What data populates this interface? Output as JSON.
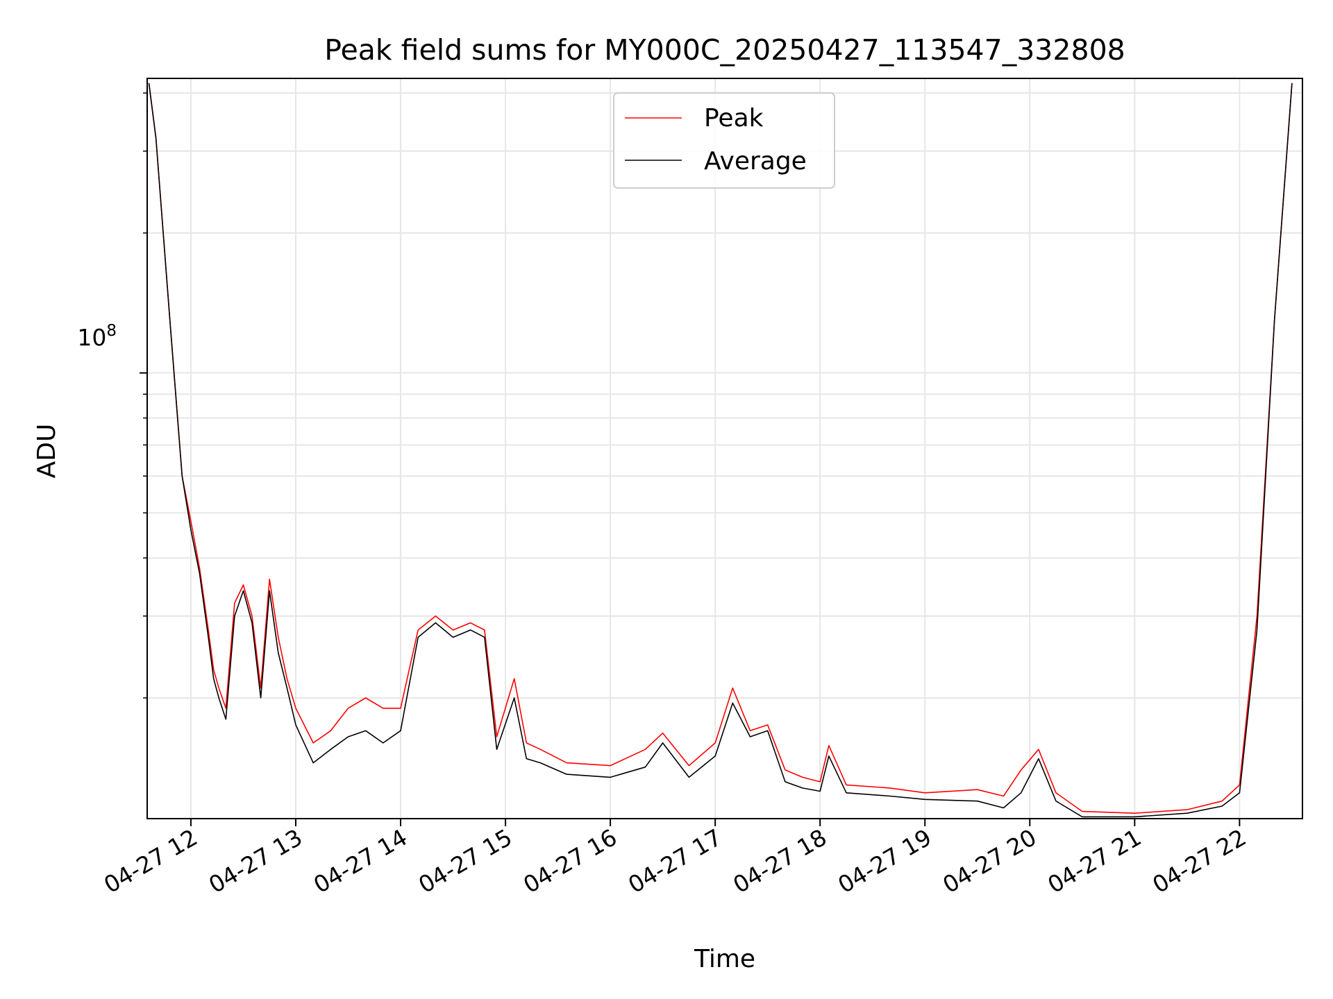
{
  "chart_data": {
    "type": "line",
    "title": "Peak field sums for MY000C_20250427_113547_332808",
    "xlabel": "Time",
    "ylabel": "ADU",
    "yscale": "log",
    "grid": true,
    "legend_position": "top-center",
    "x_range": [
      "2025-04-27 11:35",
      "2025-04-27 22:36"
    ],
    "ylim": [
      11000000,
      430000000
    ],
    "x_ticks": [
      "04-27 12",
      "04-27 13",
      "04-27 14",
      "04-27 15",
      "04-27 16",
      "04-27 17",
      "04-27 18",
      "04-27 19",
      "04-27 20",
      "04-27 21",
      "04-27 22"
    ],
    "y_tick_label": {
      "base": "10",
      "exponent": "8",
      "value": 100000000
    },
    "series": [
      {
        "name": "Peak",
        "color": "#ff0000",
        "x": [
          "2025-04-27 11:36",
          "2025-04-27 11:40",
          "2025-04-27 11:48",
          "2025-04-27 11:55",
          "2025-04-27 12:00",
          "2025-04-27 12:05",
          "2025-04-27 12:10",
          "2025-04-27 12:13",
          "2025-04-27 12:16",
          "2025-04-27 12:20",
          "2025-04-27 12:25",
          "2025-04-27 12:30",
          "2025-04-27 12:35",
          "2025-04-27 12:40",
          "2025-04-27 12:45",
          "2025-04-27 12:50",
          "2025-04-27 12:55",
          "2025-04-27 13:00",
          "2025-04-27 13:10",
          "2025-04-27 13:20",
          "2025-04-27 13:30",
          "2025-04-27 13:40",
          "2025-04-27 13:50",
          "2025-04-27 14:00",
          "2025-04-27 14:10",
          "2025-04-27 14:20",
          "2025-04-27 14:30",
          "2025-04-27 14:40",
          "2025-04-27 14:48",
          "2025-04-27 14:55",
          "2025-04-27 15:05",
          "2025-04-27 15:12",
          "2025-04-27 15:20",
          "2025-04-27 15:35",
          "2025-04-27 16:00",
          "2025-04-27 16:20",
          "2025-04-27 16:30",
          "2025-04-27 16:45",
          "2025-04-27 17:00",
          "2025-04-27 17:10",
          "2025-04-27 17:20",
          "2025-04-27 17:30",
          "2025-04-27 17:40",
          "2025-04-27 17:50",
          "2025-04-27 18:00",
          "2025-04-27 18:05",
          "2025-04-27 18:15",
          "2025-04-27 18:40",
          "2025-04-27 19:00",
          "2025-04-27 19:30",
          "2025-04-27 19:45",
          "2025-04-27 19:55",
          "2025-04-27 20:05",
          "2025-04-27 20:15",
          "2025-04-27 20:30",
          "2025-04-27 21:00",
          "2025-04-27 21:30",
          "2025-04-27 21:50",
          "2025-04-27 22:00",
          "2025-04-27 22:10",
          "2025-04-27 22:20",
          "2025-04-27 22:30"
        ],
        "values": [
          420000000,
          320000000,
          130000000,
          60000000,
          48000000,
          38000000,
          28000000,
          23000000,
          21000000,
          19000000,
          32000000,
          35000000,
          30000000,
          21000000,
          36000000,
          27000000,
          22000000,
          19000000,
          16000000,
          17000000,
          19000000,
          20000000,
          19000000,
          19000000,
          28000000,
          30000000,
          28000000,
          29000000,
          28000000,
          16500000,
          22000000,
          16000000,
          15500000,
          14500000,
          14300000,
          15500000,
          16800000,
          14300000,
          16000000,
          21000000,
          17000000,
          17500000,
          14000000,
          13500000,
          13200000,
          15800000,
          13000000,
          12800000,
          12500000,
          12700000,
          12300000,
          14000000,
          15500000,
          12500000,
          11400000,
          11300000,
          11500000,
          12000000,
          13000000,
          30000000,
          130000000,
          420000000
        ]
      },
      {
        "name": "Average",
        "color": "#000000",
        "x": [
          "2025-04-27 11:36",
          "2025-04-27 11:40",
          "2025-04-27 11:48",
          "2025-04-27 11:55",
          "2025-04-27 12:00",
          "2025-04-27 12:05",
          "2025-04-27 12:10",
          "2025-04-27 12:13",
          "2025-04-27 12:16",
          "2025-04-27 12:20",
          "2025-04-27 12:25",
          "2025-04-27 12:30",
          "2025-04-27 12:35",
          "2025-04-27 12:40",
          "2025-04-27 12:45",
          "2025-04-27 12:50",
          "2025-04-27 12:55",
          "2025-04-27 13:00",
          "2025-04-27 13:10",
          "2025-04-27 13:20",
          "2025-04-27 13:30",
          "2025-04-27 13:40",
          "2025-04-27 13:50",
          "2025-04-27 14:00",
          "2025-04-27 14:10",
          "2025-04-27 14:20",
          "2025-04-27 14:30",
          "2025-04-27 14:40",
          "2025-04-27 14:48",
          "2025-04-27 14:55",
          "2025-04-27 15:05",
          "2025-04-27 15:12",
          "2025-04-27 15:20",
          "2025-04-27 15:35",
          "2025-04-27 16:00",
          "2025-04-27 16:20",
          "2025-04-27 16:30",
          "2025-04-27 16:45",
          "2025-04-27 17:00",
          "2025-04-27 17:10",
          "2025-04-27 17:20",
          "2025-04-27 17:30",
          "2025-04-27 17:40",
          "2025-04-27 17:50",
          "2025-04-27 18:00",
          "2025-04-27 18:05",
          "2025-04-27 18:15",
          "2025-04-27 18:40",
          "2025-04-27 19:00",
          "2025-04-27 19:30",
          "2025-04-27 19:45",
          "2025-04-27 19:55",
          "2025-04-27 20:05",
          "2025-04-27 20:15",
          "2025-04-27 20:30",
          "2025-04-27 21:00",
          "2025-04-27 21:30",
          "2025-04-27 21:50",
          "2025-04-27 22:00",
          "2025-04-27 22:10",
          "2025-04-27 22:20",
          "2025-04-27 22:30"
        ],
        "values": [
          420000000,
          320000000,
          130000000,
          60000000,
          46000000,
          37000000,
          27000000,
          22000000,
          20000000,
          18000000,
          30000000,
          34000000,
          29000000,
          20000000,
          34000000,
          25000000,
          21000000,
          17500000,
          14500000,
          15500000,
          16500000,
          17000000,
          16000000,
          17000000,
          27000000,
          29000000,
          27000000,
          28000000,
          27000000,
          15500000,
          20000000,
          14800000,
          14500000,
          13700000,
          13500000,
          14200000,
          16000000,
          13500000,
          15000000,
          19500000,
          16500000,
          17000000,
          13200000,
          12800000,
          12600000,
          15000000,
          12500000,
          12300000,
          12100000,
          12000000,
          11600000,
          12500000,
          14800000,
          12000000,
          11100000,
          11100000,
          11300000,
          11700000,
          12500000,
          28000000,
          130000000,
          420000000
        ]
      }
    ]
  }
}
